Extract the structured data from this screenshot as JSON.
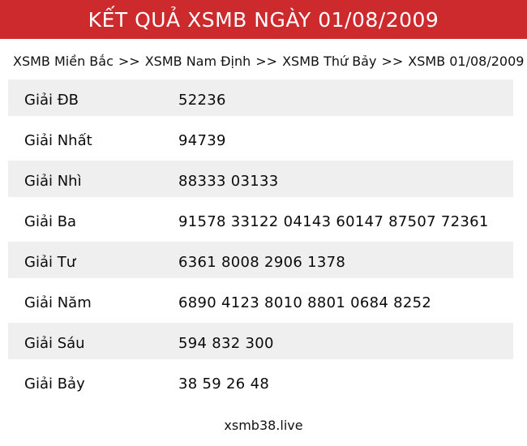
{
  "header": {
    "title": "KẾT QUẢ XSMB NGÀY 01/08/2009"
  },
  "breadcrumb": {
    "separator": ">>",
    "items": [
      "XSMB Miền Bắc",
      "XSMB Nam Định",
      "XSMB Thứ Bảy",
      "XSMB 01/08/2009"
    ]
  },
  "results_table": {
    "rows": [
      {
        "label": "Giải ĐB",
        "numbers": "52236"
      },
      {
        "label": "Giải Nhất",
        "numbers": "94739"
      },
      {
        "label": "Giải Nhì",
        "numbers": "88333 03133"
      },
      {
        "label": "Giải Ba",
        "numbers": "91578 33122 04143 60147 87507 72361"
      },
      {
        "label": "Giải Tư",
        "numbers": "6361 8008 2906 1378"
      },
      {
        "label": "Giải Năm",
        "numbers": "6890 4123 8010 8801 0684 8252"
      },
      {
        "label": "Giải Sáu",
        "numbers": "594 832 300"
      },
      {
        "label": "Giải Bảy",
        "numbers": "38 59 26 48"
      }
    ]
  },
  "footer": {
    "site_name": "xsmb38.live"
  },
  "colors": {
    "header_bg": "#CD2A2E",
    "header_text": "#FFFFFF",
    "row_alt_bg": "#EFEFEF",
    "body_text": "#111111"
  }
}
